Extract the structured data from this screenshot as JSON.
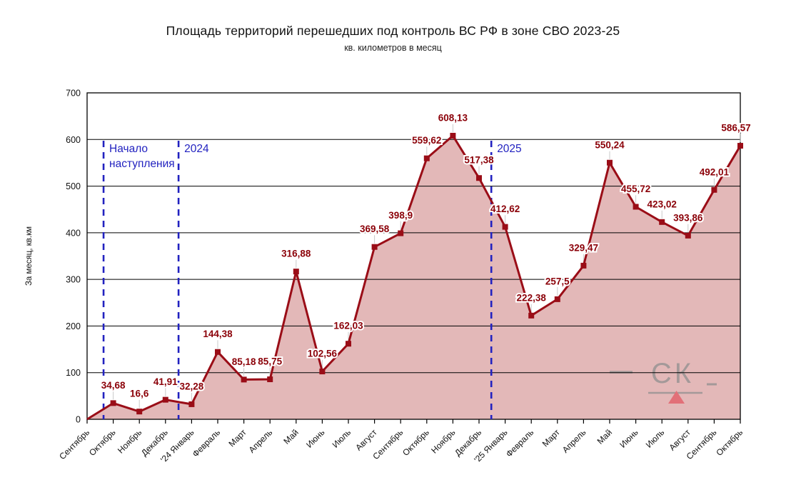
{
  "title": "Площадь территорий перешедших под контроль ВС РФ в зоне СВО 2023-25",
  "subtitle": "кв. километров в месяц",
  "watermark": {
    "text": "СК",
    "left_dash": "—",
    "right_dash": "_",
    "triangle_icon_color": "#e25863",
    "text_color": "#8f8f8f"
  },
  "chart_data": {
    "type": "area",
    "title": "Площадь территорий перешедших под контроль ВС РФ в зоне СВО 2023-25",
    "subtitle": "кв. километров в месяц",
    "xlabel": "",
    "ylabel": "За месяц, кв.км",
    "ylim": [
      0,
      700
    ],
    "ytick_step": 100,
    "grid": true,
    "legend": "none",
    "categories": [
      "Сентябрь",
      "Октябрь",
      "Ноябрь",
      "Декабрь",
      "'24 Январь",
      "Февраль",
      "Март",
      "Апрель",
      "Май",
      "Июнь",
      "Июль",
      "Август",
      "Сентябрь",
      "Октябрь",
      "Ноябрь",
      "Декабрь",
      "'25 Январь",
      "Февраль",
      "Март",
      "Апрель",
      "Май",
      "Июнь",
      "Июль",
      "Август",
      "Сентябрь",
      "Октябрь"
    ],
    "values": [
      0,
      34.68,
      16.6,
      41.91,
      32.28,
      144.38,
      85.18,
      85.75,
      316.88,
      102.56,
      162.03,
      369.58,
      398.9,
      559.62,
      608.13,
      517.38,
      412.62,
      222.38,
      257.5,
      329.47,
      550.24,
      455.72,
      423.02,
      393.86,
      492.01,
      586.57
    ],
    "point_labels": [
      "",
      "34,68",
      "16,6",
      "41,91",
      "32,28",
      "144,38",
      "85,18",
      "85,75",
      "316,88",
      "102,56",
      "162,03",
      "369,58",
      "398,9",
      "559,62",
      "608,13",
      "517,38",
      "412,62",
      "222,38",
      "257,5",
      "329,47",
      "550,24",
      "455,72",
      "423,02",
      "393,86",
      "492,01",
      "586,57"
    ],
    "annotations": [
      {
        "lines": [
          "Начало",
          "наступления"
        ],
        "x_index": 0.63
      },
      {
        "lines": [
          "2024"
        ],
        "x_index": 3.5
      },
      {
        "lines": [
          "2025"
        ],
        "x_index": 15.47
      }
    ],
    "colors": {
      "line": "#9a0d17",
      "marker": "#9a0d17",
      "fill": "#e3b8b8",
      "point_label": "#8b0008",
      "annotation": "#2222c0",
      "grid": "#000000",
      "leader": "#c9c9c9"
    }
  }
}
